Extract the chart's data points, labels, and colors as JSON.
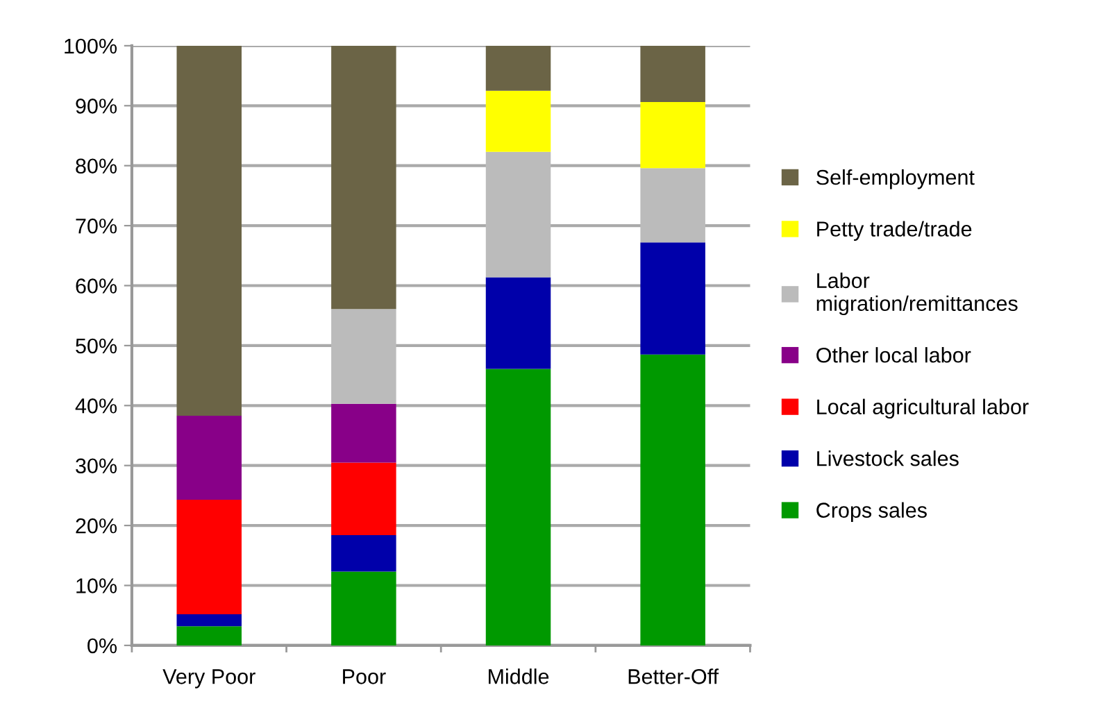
{
  "chart_data": {
    "type": "bar",
    "stacked": true,
    "categories": [
      "Very Poor",
      "Poor",
      "Middle",
      "Better-Off"
    ],
    "series": [
      {
        "name": "Crops sales",
        "color": "#009900",
        "values": [
          3.2,
          12.3,
          46.1,
          48.5
        ]
      },
      {
        "name": "Livestock sales",
        "color": "#0000aa",
        "values": [
          2.0,
          6.1,
          15.3,
          18.7
        ]
      },
      {
        "name": "Local agricultural labor",
        "color": "#ff0000",
        "values": [
          19.1,
          12.1,
          0,
          0
        ]
      },
      {
        "name": "Other local labor",
        "color": "#880088",
        "values": [
          14.0,
          9.8,
          0,
          0
        ]
      },
      {
        "name": "Labor\nmigration/remittances",
        "color": "#bbbbbb",
        "values": [
          0,
          15.8,
          20.9,
          12.4
        ]
      },
      {
        "name": "Petty trade/trade",
        "color": "#ffff00",
        "values": [
          0,
          0,
          10.2,
          11.0
        ]
      },
      {
        "name": "Self-employment",
        "color": "#6b6446",
        "values": [
          61.7,
          43.9,
          7.5,
          9.4
        ]
      }
    ],
    "ylim": [
      0,
      100
    ],
    "yticks": [
      {
        "value": 0,
        "label": "0%"
      },
      {
        "value": 10,
        "label": "10%"
      },
      {
        "value": 20,
        "label": "20%"
      },
      {
        "value": 30,
        "label": "30%"
      },
      {
        "value": 40,
        "label": "40%"
      },
      {
        "value": 50,
        "label": "50%"
      },
      {
        "value": 60,
        "label": "60%"
      },
      {
        "value": 70,
        "label": "70%"
      },
      {
        "value": 80,
        "label": "80%"
      },
      {
        "value": 90,
        "label": "90%"
      },
      {
        "value": 100,
        "label": "100%"
      }
    ],
    "grid": "y",
    "legend": "right"
  }
}
